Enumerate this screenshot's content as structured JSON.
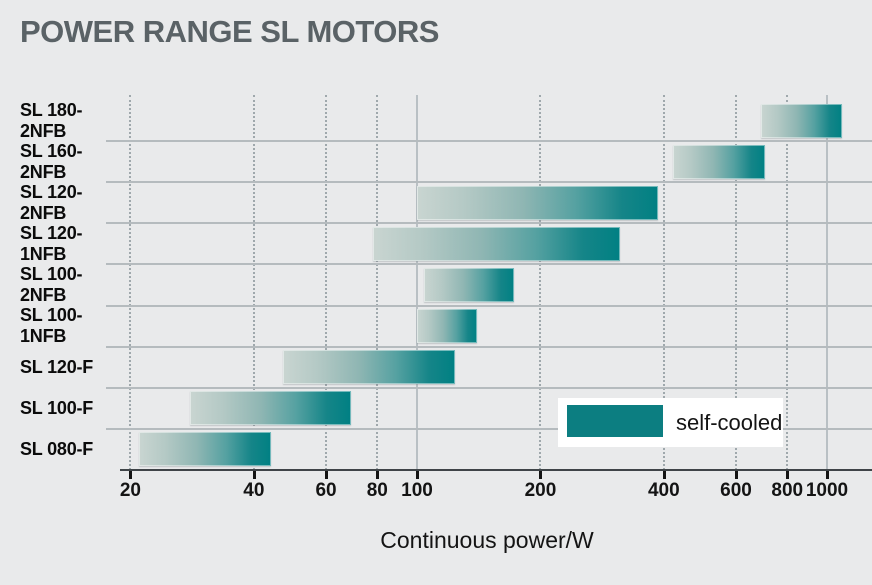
{
  "title": "POWER RANGE SL MOTORS",
  "legend": {
    "label": "self-cooled",
    "swatch_color": "#0c7e81"
  },
  "colors": {
    "background": "#e9eaeb",
    "title_text": "#5a6266",
    "axis_line": "#3f4448",
    "gridline": "#9fa8ac",
    "major_gridline": "#b9c0c4",
    "bar_gradient_start": "#c9d5d1",
    "bar_gradient_end": "#008083",
    "label_text": "#141414"
  },
  "chart_data": {
    "type": "bar",
    "orientation": "horizontal-range",
    "x_scale": "log",
    "title": "POWER RANGE SL MOTORS",
    "xlabel": "Continuous power/W",
    "ylabel": "",
    "xlim": [
      19,
      1290
    ],
    "x_ticks": [
      20,
      40,
      60,
      80,
      100,
      200,
      400,
      600,
      800,
      1000
    ],
    "major_ticks": [
      100,
      1000
    ],
    "grid": true,
    "legend_position": "inside-lower-right",
    "categories": [
      "SL 180-2NFB",
      "SL 160-2NFB",
      "SL 120-2NFB",
      "SL 120-1NFB",
      "SL 100-2NFB",
      "SL 100-1NFB",
      "SL 120-F",
      "SL 100-F",
      "SL 080-F"
    ],
    "series": [
      {
        "name": "self-cooled",
        "ranges_w": [
          [
            690,
            1090
          ],
          [
            420,
            705
          ],
          [
            100,
            388
          ],
          [
            78,
            312
          ],
          [
            104,
            172
          ],
          [
            100,
            140
          ],
          [
            47,
            124
          ],
          [
            28,
            69
          ],
          [
            21,
            44
          ]
        ]
      }
    ]
  }
}
